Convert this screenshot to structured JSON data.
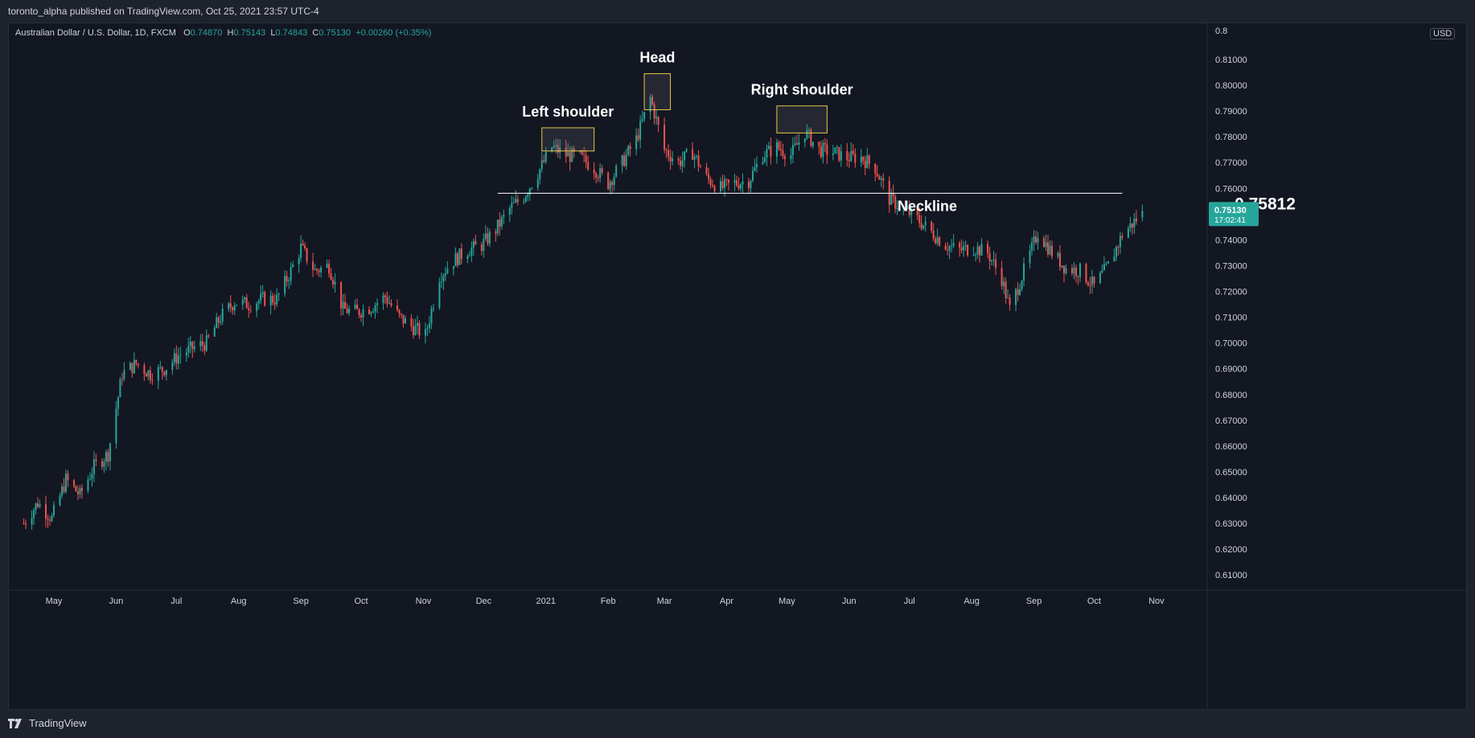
{
  "header": {
    "published_text": "toronto_alpha published on TradingView.com, Oct 25, 2021 23:57 UTC-4"
  },
  "legend": {
    "symbol": "Australian Dollar / U.S. Dollar, 1D, FXCM",
    "o_label": "O",
    "o_value": "0.74870",
    "h_label": "H",
    "h_value": "0.75143",
    "l_label": "L",
    "l_value": "0.74843",
    "c_label": "C",
    "c_value": "0.75130",
    "change": "+0.00260 (+0.35%)"
  },
  "price_axis": {
    "currency": "USD",
    "current_price": "0.75130",
    "countdown": "17:02:41",
    "top_partial_label": "0.8"
  },
  "footer": {
    "brand": "TradingView"
  },
  "colors": {
    "up": "#26a69a",
    "down": "#ef5350",
    "background": "#131722",
    "annotation_box": "#e8c547",
    "neckline": "#ffffff"
  },
  "chart_data": {
    "type": "candlestick",
    "title": "",
    "xlabel": "",
    "ylabel": "",
    "ylim": [
      0.6,
      0.82
    ],
    "grid": false,
    "y_ticks": [
      "0.81000",
      "0.80000",
      "0.79000",
      "0.78000",
      "0.77000",
      "0.76000",
      "0.75000",
      "0.74000",
      "0.73000",
      "0.72000",
      "0.71000",
      "0.70000",
      "0.69000",
      "0.68000",
      "0.67000",
      "0.66000",
      "0.65000",
      "0.64000",
      "0.63000",
      "0.62000",
      "0.61000"
    ],
    "x_ticks": [
      "May",
      "Jun",
      "Jul",
      "Aug",
      "Sep",
      "Oct",
      "Nov",
      "Dec",
      "2021",
      "Feb",
      "Mar",
      "Apr",
      "May",
      "Jun",
      "Jul",
      "Aug",
      "Sep",
      "Oct",
      "Nov"
    ],
    "price_path": [
      [
        "2020-04-16",
        0.63
      ],
      [
        "2020-04-23",
        0.638
      ],
      [
        "2020-04-30",
        0.632
      ],
      [
        "2020-05-07",
        0.647
      ],
      [
        "2020-05-14",
        0.641
      ],
      [
        "2020-05-21",
        0.652
      ],
      [
        "2020-05-28",
        0.657
      ],
      [
        "2020-06-04",
        0.688
      ],
      [
        "2020-06-11",
        0.692
      ],
      [
        "2020-06-18",
        0.688
      ],
      [
        "2020-06-25",
        0.69
      ],
      [
        "2020-07-02",
        0.695
      ],
      [
        "2020-07-09",
        0.698
      ],
      [
        "2020-07-16",
        0.7
      ],
      [
        "2020-07-23",
        0.71
      ],
      [
        "2020-07-30",
        0.716
      ],
      [
        "2020-08-06",
        0.715
      ],
      [
        "2020-08-13",
        0.717
      ],
      [
        "2020-08-20",
        0.717
      ],
      [
        "2020-08-27",
        0.728
      ],
      [
        "2020-09-01",
        0.737
      ],
      [
        "2020-09-08",
        0.728
      ],
      [
        "2020-09-15",
        0.73
      ],
      [
        "2020-09-22",
        0.713
      ],
      [
        "2020-09-29",
        0.712
      ],
      [
        "2020-10-06",
        0.714
      ],
      [
        "2020-10-13",
        0.718
      ],
      [
        "2020-10-20",
        0.71
      ],
      [
        "2020-10-27",
        0.706
      ],
      [
        "2020-11-02",
        0.703
      ],
      [
        "2020-11-09",
        0.726
      ],
      [
        "2020-11-16",
        0.732
      ],
      [
        "2020-11-23",
        0.736
      ],
      [
        "2020-11-30",
        0.738
      ],
      [
        "2020-12-07",
        0.744
      ],
      [
        "2020-12-14",
        0.752
      ],
      [
        "2020-12-21",
        0.757
      ],
      [
        "2020-12-28",
        0.766
      ],
      [
        "2021-01-04",
        0.776
      ],
      [
        "2021-01-11",
        0.773
      ],
      [
        "2021-01-18",
        0.772
      ],
      [
        "2021-01-25",
        0.768
      ],
      [
        "2021-02-01",
        0.762
      ],
      [
        "2021-02-08",
        0.77
      ],
      [
        "2021-02-15",
        0.779
      ],
      [
        "2021-02-22",
        0.795
      ],
      [
        "2021-03-01",
        0.775
      ],
      [
        "2021-03-08",
        0.77
      ],
      [
        "2021-03-15",
        0.774
      ],
      [
        "2021-03-22",
        0.764
      ],
      [
        "2021-03-29",
        0.76
      ],
      [
        "2021-04-05",
        0.762
      ],
      [
        "2021-04-12",
        0.763
      ],
      [
        "2021-04-19",
        0.773
      ],
      [
        "2021-04-26",
        0.776
      ],
      [
        "2021-05-03",
        0.773
      ],
      [
        "2021-05-10",
        0.782
      ],
      [
        "2021-05-17",
        0.775
      ],
      [
        "2021-05-24",
        0.774
      ],
      [
        "2021-05-31",
        0.772
      ],
      [
        "2021-06-07",
        0.772
      ],
      [
        "2021-06-14",
        0.768
      ],
      [
        "2021-06-21",
        0.756
      ],
      [
        "2021-06-28",
        0.752
      ],
      [
        "2021-07-05",
        0.748
      ],
      [
        "2021-07-12",
        0.743
      ],
      [
        "2021-07-19",
        0.738
      ],
      [
        "2021-07-26",
        0.736
      ],
      [
        "2021-08-02",
        0.737
      ],
      [
        "2021-08-09",
        0.735
      ],
      [
        "2021-08-16",
        0.725
      ],
      [
        "2021-08-20",
        0.713
      ],
      [
        "2021-08-27",
        0.728
      ],
      [
        "2021-09-03",
        0.743
      ],
      [
        "2021-09-10",
        0.735
      ],
      [
        "2021-09-17",
        0.729
      ],
      [
        "2021-09-24",
        0.728
      ],
      [
        "2021-10-01",
        0.722
      ],
      [
        "2021-10-08",
        0.73
      ],
      [
        "2021-10-15",
        0.742
      ],
      [
        "2021-10-22",
        0.748
      ],
      [
        "2021-10-25",
        0.751
      ]
    ],
    "last_price": 0.7513,
    "annotations": [
      {
        "text": "Left shoulder",
        "box": {
          "from": "2020-12-30",
          "to": "2021-01-25",
          "low": 0.7745,
          "high": 0.7835
        }
      },
      {
        "text": "Head",
        "box": {
          "from": "2021-02-19",
          "to": "2021-03-04",
          "low": 0.7905,
          "high": 0.8045
        }
      },
      {
        "text": "Right shoulder",
        "box": {
          "from": "2021-04-26",
          "to": "2021-05-21",
          "low": 0.7815,
          "high": 0.792
        }
      }
    ],
    "neckline": {
      "value": 0.75812,
      "label": "Neckline",
      "value_label": "0.75812",
      "from": "2020-12-08",
      "to": "2021-10-15"
    }
  }
}
